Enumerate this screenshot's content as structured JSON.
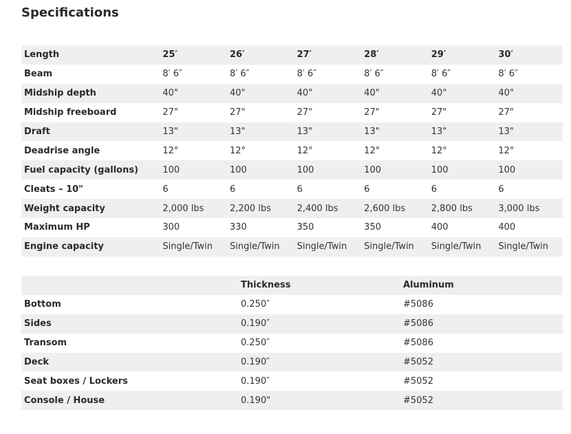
{
  "title": "Specifications",
  "specs": {
    "rows": [
      [
        "Length",
        "25′",
        "26′",
        "27′",
        "28′",
        "29′",
        "30′"
      ],
      [
        "Beam",
        "8′ 6″",
        "8′ 6″",
        "8′ 6″",
        "8′ 6″",
        "8′ 6″",
        "8′ 6″"
      ],
      [
        "Midship depth",
        "40\"",
        "40\"",
        "40\"",
        "40\"",
        "40\"",
        "40\""
      ],
      [
        "Midship freeboard",
        "27\"",
        "27\"",
        "27\"",
        "27\"",
        "27\"",
        "27\""
      ],
      [
        "Draft",
        "13\"",
        "13\"",
        "13\"",
        "13\"",
        "13\"",
        "13\""
      ],
      [
        "Deadrise angle",
        "12°",
        "12°",
        "12°",
        "12°",
        "12°",
        "12°"
      ],
      [
        "Fuel capacity (gallons)",
        "100",
        "100",
        "100",
        "100",
        "100",
        "100"
      ],
      [
        "Cleats – 10\"",
        "6",
        "6",
        "6",
        "6",
        "6",
        "6"
      ],
      [
        "Weight capacity",
        "2,000 lbs",
        "2,200 lbs",
        "2,400 lbs",
        "2,600 lbs",
        "2,800 lbs",
        "3,000 lbs"
      ],
      [
        "Maximum HP",
        "300",
        "330",
        "350",
        "350",
        "400",
        "400"
      ],
      [
        "Engine capacity",
        "Single/Twin",
        "Single/Twin",
        "Single/Twin",
        "Single/Twin",
        "Single/Twin",
        "Single/Twin"
      ]
    ]
  },
  "materials": {
    "rows": [
      [
        "",
        "Thickness",
        "Aluminum"
      ],
      [
        "Bottom",
        "0.250″",
        "#5086"
      ],
      [
        "Sides",
        "0.190″",
        "#5086"
      ],
      [
        "Transom",
        "0.250″",
        "#5086"
      ],
      [
        "Deck",
        "0.190″",
        "#5052"
      ],
      [
        "Seat boxes / Lockers",
        "0.190″",
        "#5052"
      ],
      [
        "Console / House",
        "0.190\"",
        "#5052"
      ]
    ]
  }
}
